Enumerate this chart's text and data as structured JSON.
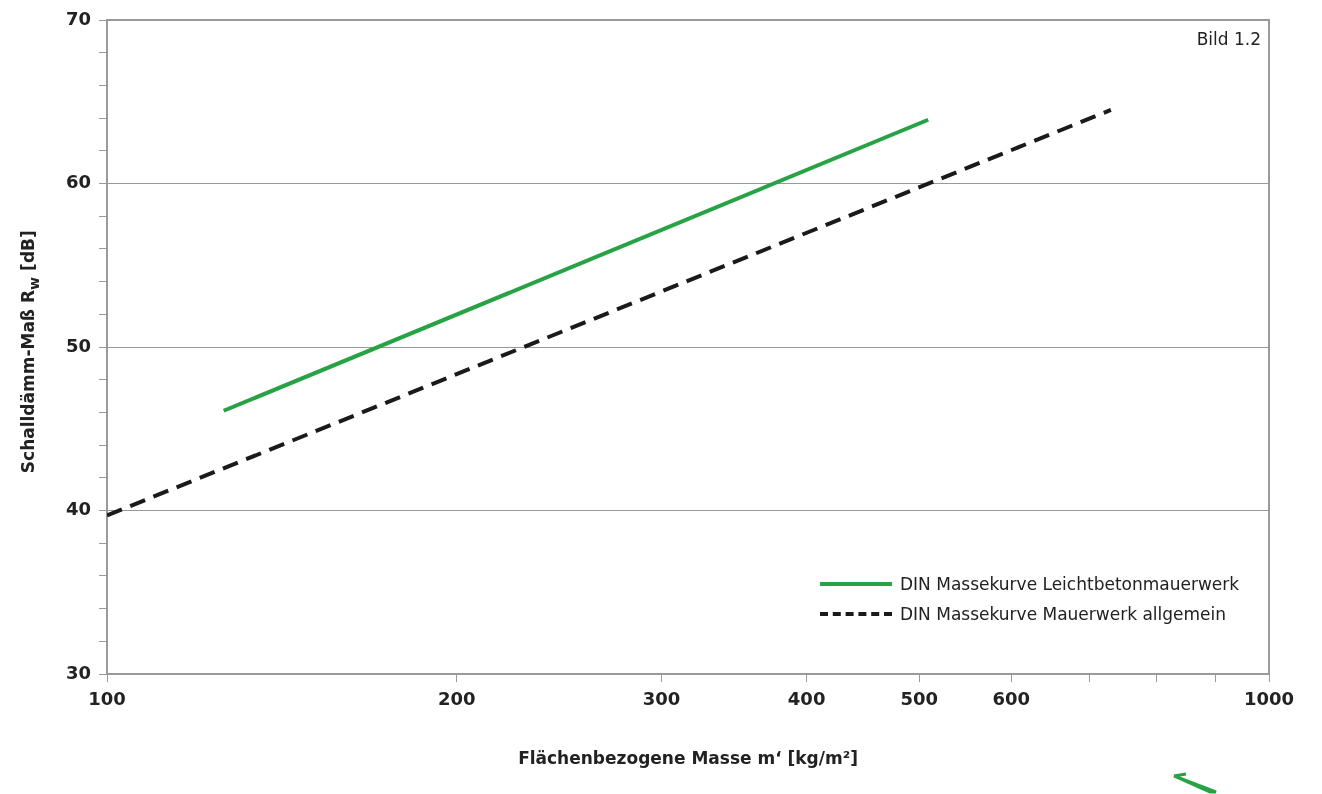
{
  "chart_data": {
    "type": "line",
    "xlabel": "Flächenbezogene Masse m‘ [kg/m²]",
    "ylabel": "Schalldämm-Maß R$_{w}$ [dB]",
    "annotations": [
      "Bild 1.2"
    ],
    "log": "x",
    "xlim": [
      100,
      1000
    ],
    "ylim": [
      30,
      70
    ],
    "xticks": [
      100,
      200,
      300,
      400,
      500,
      600,
      {
        "value": 700,
        "label": null
      },
      {
        "value": 800,
        "label": null
      },
      {
        "value": 900,
        "label": null
      },
      1000
    ],
    "yticks": [
      30,
      {
        "value": 32,
        "label": null
      },
      {
        "value": 34,
        "label": null
      },
      {
        "value": 36,
        "label": null
      },
      {
        "value": 38,
        "label": null
      },
      40,
      {
        "value": 42,
        "label": null
      },
      {
        "value": 44,
        "label": null
      },
      {
        "value": 46,
        "label": null
      },
      {
        "value": 48,
        "label": null
      },
      50,
      {
        "value": 52,
        "label": null
      },
      {
        "value": 54,
        "label": null
      },
      {
        "value": 56,
        "label": null
      },
      {
        "value": 58,
        "label": null
      },
      60,
      {
        "value": 62,
        "label": null
      },
      {
        "value": 64,
        "label": null
      },
      {
        "value": 66,
        "label": null
      },
      {
        "value": 68,
        "label": null
      },
      70
    ],
    "grid": "y",
    "legend": "bottom right",
    "marker": "none",
    "series": [
      {
        "name": "DIN Massekurve Leichtbetonmauerwerk",
        "color": "#27a244",
        "x": [
          126,
          509
        ],
        "values": [
          46.1,
          63.9
        ],
        "line_style": "solid"
      },
      {
        "name": "DIN Massekurve Mauerwerk allgemein",
        "color": "#1a1a1a",
        "x": [
          100,
          731
        ],
        "values": [
          39.7,
          64.5
        ],
        "line_style": "dashed"
      }
    ]
  }
}
